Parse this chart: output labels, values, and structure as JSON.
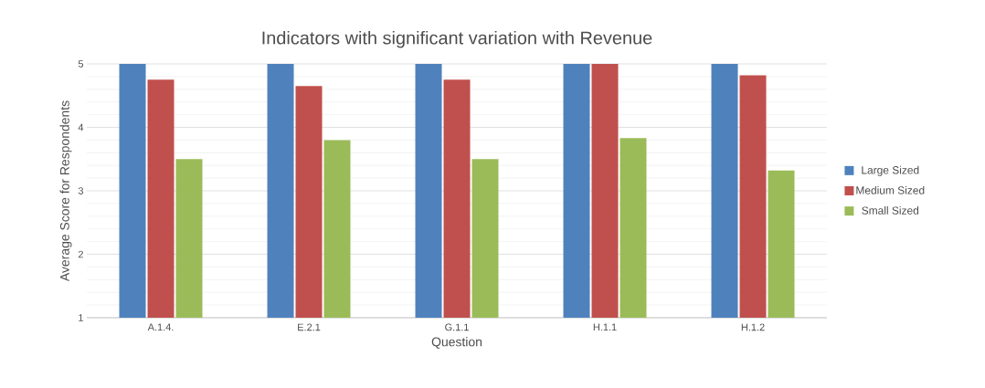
{
  "chart_data": {
    "type": "bar",
    "title": "Indicators with significant variation with Revenue",
    "xlabel": "Question",
    "ylabel": "Average Score for Respondents",
    "categories": [
      "A.1.4.",
      "E.2.1",
      "G.1.1",
      "H.1.1",
      "H.1.2"
    ],
    "series": [
      {
        "name": "Large Sized",
        "color": "#4f81bd",
        "values": [
          5,
          5,
          5,
          5,
          5
        ]
      },
      {
        "name": "Medium Sized",
        "color": "#c0504d",
        "values": [
          4.75,
          4.65,
          4.75,
          5,
          4.82
        ]
      },
      {
        "name": "Small Sized",
        "color": "#9bbb59",
        "values": [
          3.5,
          3.8,
          3.5,
          3.83,
          3.32
        ]
      }
    ],
    "ylim": [
      1,
      5
    ],
    "yticks": [
      1,
      2,
      3,
      4,
      5
    ],
    "grid": "y",
    "legend": "right"
  }
}
